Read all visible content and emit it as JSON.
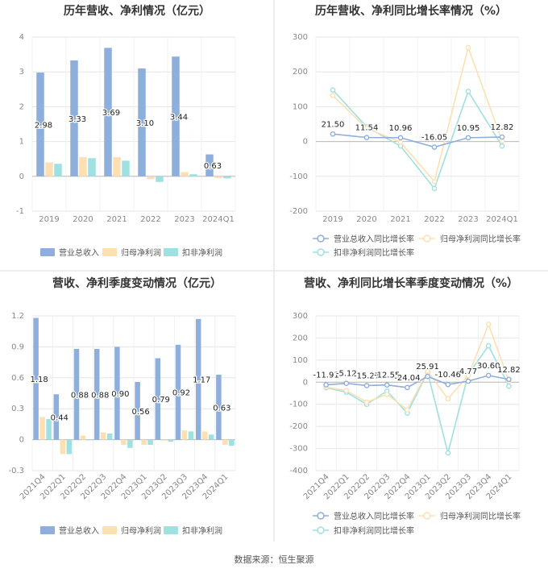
{
  "source_note": "数据来源：恒生聚源",
  "colors": {
    "revenue": "#8eaedc",
    "parent_profit": "#fde0b2",
    "deducted_profit": "#9fe0e0",
    "grid": "#e6e6e6",
    "axis_text": "#888888",
    "title": "#333333",
    "divider": "#dddddd"
  },
  "chart_data": [
    {
      "id": "c1",
      "type": "bar",
      "title": "历年营收、净利情况（亿元）",
      "categories": [
        "2019",
        "2020",
        "2021",
        "2022",
        "2023",
        "2024Q1"
      ],
      "series": [
        {
          "name": "营业总收入",
          "color_key": "revenue",
          "values": [
            2.98,
            3.33,
            3.69,
            3.1,
            3.44,
            0.63
          ],
          "labels": [
            "2.98",
            "3.33",
            "3.69",
            "3.10",
            "3.44",
            "0.63"
          ]
        },
        {
          "name": "归母净利润",
          "color_key": "parent_profit",
          "values": [
            0.4,
            0.55,
            0.55,
            -0.08,
            0.12,
            -0.05
          ]
        },
        {
          "name": "扣非净利润",
          "color_key": "deducted_profit",
          "values": [
            0.36,
            0.52,
            0.45,
            -0.16,
            0.06,
            -0.06
          ]
        }
      ],
      "ylim": [
        -1,
        4
      ],
      "yticks": [
        "-1",
        "0",
        "1",
        "2",
        "3",
        "4"
      ],
      "ytick_values": [
        -1,
        0,
        1,
        2,
        3,
        4
      ],
      "legend": "bottom"
    },
    {
      "id": "c2",
      "type": "line",
      "title": "历年营收、净利同比增长率情况（%）",
      "categories": [
        "2019",
        "2020",
        "2021",
        "2022",
        "2023",
        "2024Q1"
      ],
      "series": [
        {
          "name": "营业总收入同比增长率",
          "color_key": "revenue",
          "values": [
            21.5,
            11.54,
            10.96,
            -16.05,
            10.95,
            12.82
          ],
          "labels": [
            "21.50",
            "11.54",
            "10.96",
            "-16.05",
            "10.95",
            "12.82"
          ]
        },
        {
          "name": "归母净利润同比增长率",
          "color_key": "parent_profit",
          "values": [
            132,
            38,
            -2,
            -115,
            270,
            2
          ]
        },
        {
          "name": "扣非净利润同比增长率",
          "color_key": "deducted_profit",
          "values": [
            148,
            42,
            -13,
            -135,
            144,
            -13
          ]
        }
      ],
      "ylim": [
        -200,
        300
      ],
      "yticks": [
        "-200",
        "-100",
        "0",
        "100",
        "200",
        "300"
      ],
      "ytick_values": [
        -200,
        -100,
        0,
        100,
        200,
        300
      ],
      "legend": "bottom"
    },
    {
      "id": "c3",
      "type": "bar",
      "title": "营收、净利季度变动情况（亿元）",
      "categories": [
        "2021Q4",
        "2022Q1",
        "2022Q2",
        "2022Q3",
        "2022Q4",
        "2023Q1",
        "2023Q2",
        "2023Q3",
        "2023Q4",
        "2024Q1"
      ],
      "series": [
        {
          "name": "营业总收入",
          "color_key": "revenue",
          "values": [
            1.18,
            0.44,
            0.88,
            0.88,
            0.9,
            0.56,
            0.79,
            0.92,
            1.17,
            0.63
          ],
          "labels": [
            "1.18",
            "0.44",
            "0.88",
            "0.88",
            "0.90",
            "0.56",
            "0.79",
            "0.92",
            "1.17",
            "0.63"
          ]
        },
        {
          "name": "归母净利润",
          "color_key": "parent_profit",
          "values": [
            0.22,
            -0.14,
            0.04,
            0.07,
            -0.05,
            -0.05,
            -0.01,
            0.09,
            0.08,
            -0.05
          ]
        },
        {
          "name": "扣非净利润",
          "color_key": "deducted_profit",
          "values": [
            0.2,
            -0.14,
            0.0,
            0.06,
            -0.08,
            -0.05,
            -0.02,
            0.08,
            0.05,
            -0.06
          ]
        }
      ],
      "ylim": [
        -0.3,
        1.2
      ],
      "yticks": [
        "-0.3",
        "0",
        "0.3",
        "0.6",
        "0.9",
        "1.2"
      ],
      "ytick_values": [
        -0.3,
        0,
        0.3,
        0.6,
        0.9,
        1.2
      ],
      "legend": "bottom",
      "rotate_x": true
    },
    {
      "id": "c4",
      "type": "line",
      "title": "营收、净利同比增长率季度变动情况（%）",
      "categories": [
        "2021Q4",
        "2022Q1",
        "2022Q2",
        "2022Q3",
        "2022Q4",
        "2023Q1",
        "2023Q2",
        "2023Q3",
        "2023Q4",
        "2024Q1"
      ],
      "series": [
        {
          "name": "营业总收入同比增长率",
          "color_key": "revenue",
          "values": [
            -11.91,
            -5.12,
            -15.27,
            -12.55,
            -24.04,
            25.91,
            -10.46,
            4.77,
            30.6,
            12.82
          ],
          "labels": [
            "-11.91",
            "-5.12",
            "-15.27",
            "-12.55",
            "-24.04",
            "25.91",
            "-10.46",
            "4.77",
            "30.60",
            "12.82"
          ]
        },
        {
          "name": "归母净利润同比增长率",
          "color_key": "parent_profit",
          "values": [
            -22,
            -38,
            -90,
            -55,
            -125,
            50,
            -75,
            30,
            262,
            5
          ]
        },
        {
          "name": "扣非净利润同比增长率",
          "color_key": "deducted_profit",
          "values": [
            -25,
            -45,
            -100,
            -40,
            -140,
            45,
            -320,
            35,
            165,
            -18
          ]
        }
      ],
      "ylim": [
        -400,
        300
      ],
      "yticks": [
        "-400",
        "-300",
        "-200",
        "-100",
        "0",
        "100",
        "200",
        "300"
      ],
      "ytick_values": [
        -400,
        -300,
        -200,
        -100,
        0,
        100,
        200,
        300
      ],
      "legend": "bottom",
      "rotate_x": true
    }
  ]
}
